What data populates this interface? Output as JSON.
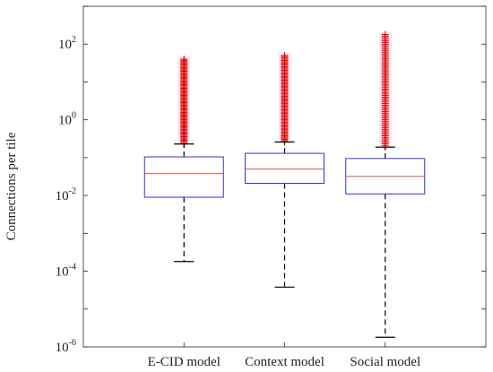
{
  "chart_data": {
    "type": "box",
    "title": "",
    "xlabel": "",
    "ylabel": "Connections per tile",
    "yscale": "log",
    "ylim": [
      1e-06,
      1000
    ],
    "yticks": [
      {
        "base": "10",
        "exp": "-6",
        "value": 1e-06
      },
      {
        "base": "10",
        "exp": "-4",
        "value": 0.0001
      },
      {
        "base": "10",
        "exp": "-2",
        "value": 0.01
      },
      {
        "base": "10",
        "exp": "0",
        "value": 1
      },
      {
        "base": "10",
        "exp": "2",
        "value": 100
      }
    ],
    "categories": [
      "E-CID model",
      "Context model",
      "Social model"
    ],
    "boxes": [
      {
        "whisker_low": 0.00018,
        "q1": 0.009,
        "median": 0.038,
        "q3": 0.105,
        "whisker_high": 0.23,
        "outlier_max": 40
      },
      {
        "whisker_low": 3.8e-05,
        "q1": 0.021,
        "median": 0.05,
        "q3": 0.13,
        "whisker_high": 0.26,
        "outlier_max": 50
      },
      {
        "whisker_low": 1.8e-06,
        "q1": 0.011,
        "median": 0.032,
        "q3": 0.095,
        "whisker_high": 0.19,
        "outlier_max": 180
      }
    ],
    "colors": {
      "box": "#3333cc",
      "median": "#d9534f",
      "whisker": "#000000",
      "outlier": "#dd0000"
    }
  }
}
